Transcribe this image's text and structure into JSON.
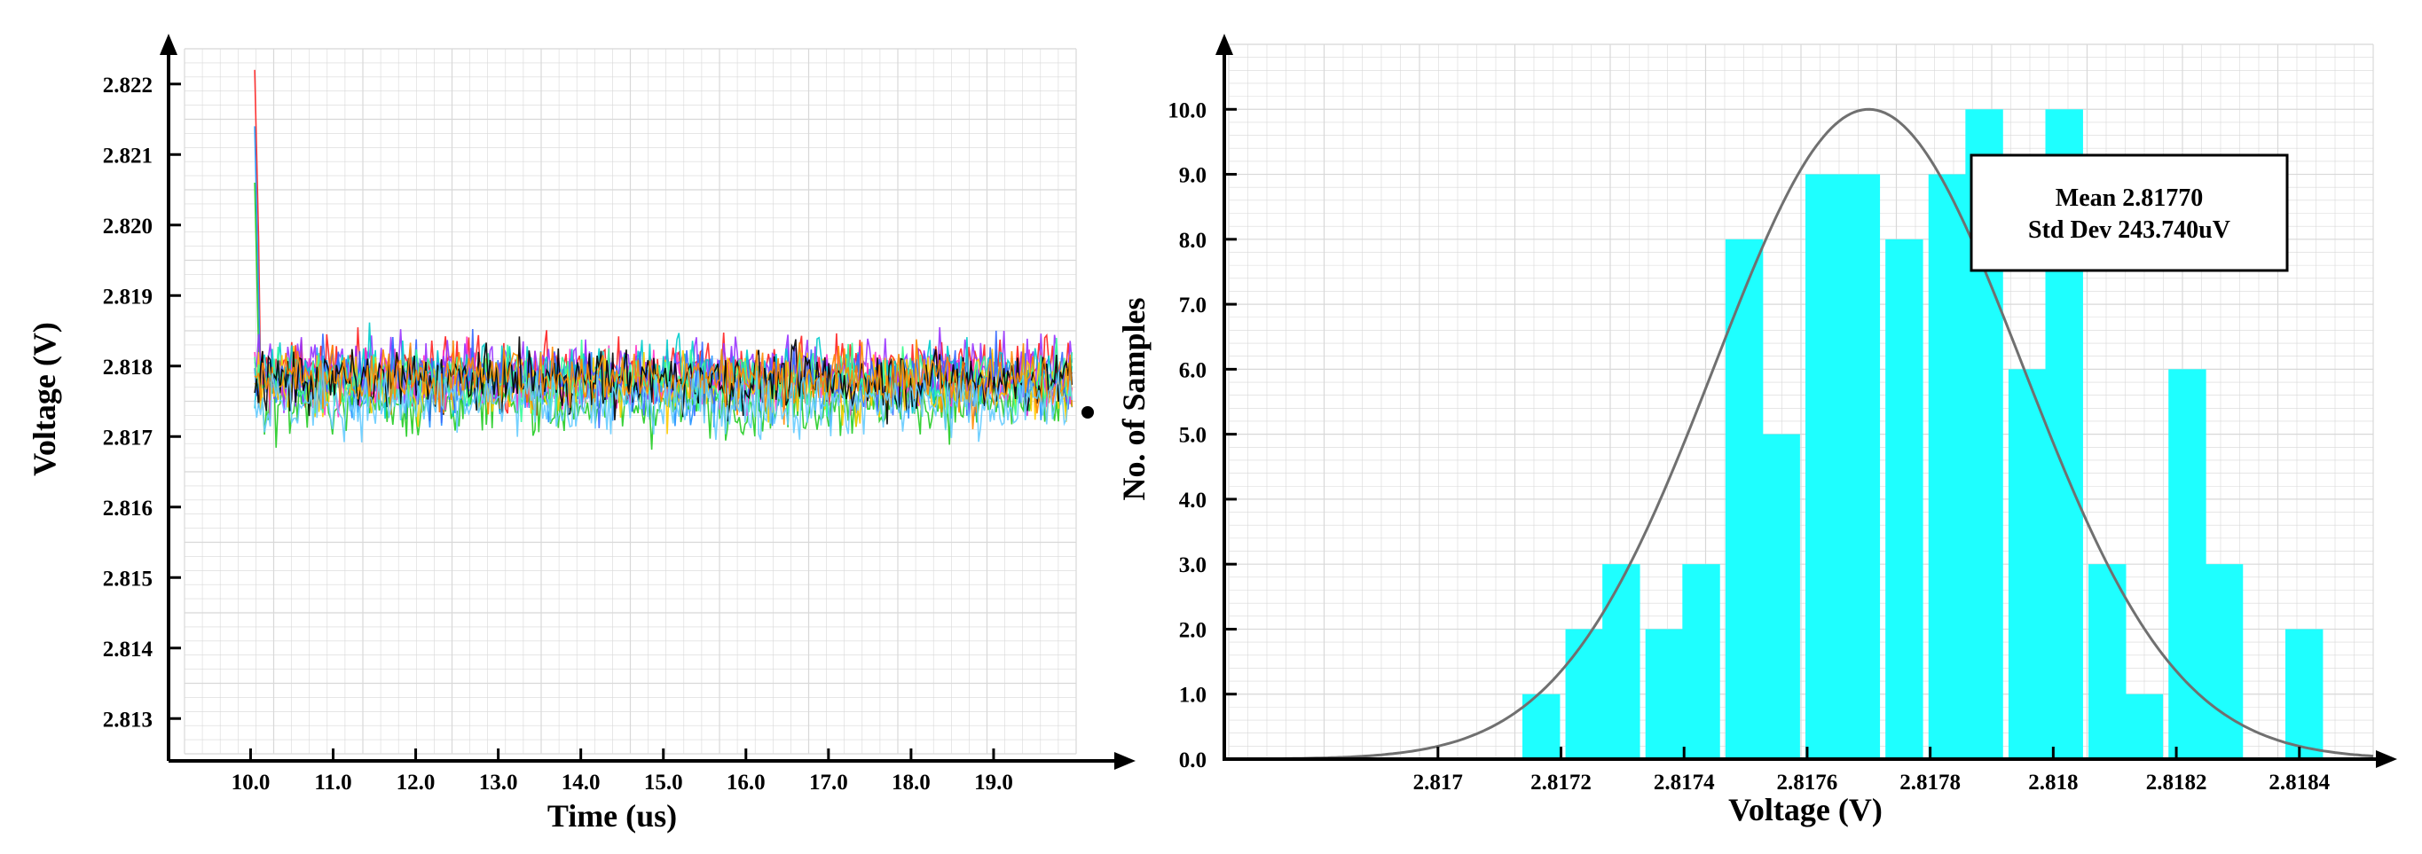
{
  "charts": {
    "left": {
      "ylabel": "Voltage (V)",
      "xlabel": "Time (us)"
    },
    "right": {
      "ylabel": "No. of Samples",
      "xlabel": "Voltage (V)",
      "stats": {
        "mean": "Mean 2.81770",
        "std": "Std Dev 243.740uV"
      }
    }
  },
  "colors": {
    "axis": "#000000",
    "grid": "#d8d8d8",
    "bar_fill": "#1effff",
    "fit_curve": "#707070",
    "trace_palette": [
      "#ff2020",
      "#1e90ff",
      "#22cc22",
      "#ff33cc",
      "#9933ff",
      "#00cccc",
      "#ffcc00",
      "#3366ff",
      "#33ff99",
      "#000000",
      "#ff8800",
      "#66ccff"
    ]
  },
  "chart_data": [
    {
      "type": "line",
      "title": "",
      "xlabel": "Time (us)",
      "ylabel": "Voltage (V)",
      "xlim": [
        9.2,
        20.0
      ],
      "ylim": [
        2.8125,
        2.8225
      ],
      "xticks": [
        10.0,
        11.0,
        12.0,
        13.0,
        14.0,
        15.0,
        16.0,
        17.0,
        18.0,
        19.0
      ],
      "xtick_labels": [
        "10.0",
        "11.0",
        "12.0",
        "13.0",
        "14.0",
        "15.0",
        "16.0",
        "17.0",
        "18.0",
        "19.0"
      ],
      "yticks": [
        2.813,
        2.814,
        2.815,
        2.816,
        2.817,
        2.818,
        2.819,
        2.82,
        2.821,
        2.822
      ],
      "ytick_labels": [
        "2.813",
        "2.814",
        "2.815",
        "2.816",
        "2.817",
        "2.818",
        "2.819",
        "2.820",
        "2.821",
        "2.822"
      ],
      "grid": true,
      "series_description": "many overlaid noisy transient traces",
      "x_start": 10.05,
      "x_end": 19.95,
      "settled_center": 2.8178,
      "settled_band": [
        2.8167,
        2.819
      ],
      "initial_spike_max": 2.8222,
      "series_count": 12
    },
    {
      "type": "bar",
      "title": "",
      "xlabel": "Voltage (V)",
      "ylabel": "No. of Samples",
      "xlim": [
        2.81666,
        2.81852
      ],
      "ylim": [
        0,
        11
      ],
      "xticks": [
        2.817,
        2.8172,
        2.8174,
        2.8176,
        2.8178,
        2.818,
        2.8182,
        2.8184
      ],
      "xtick_labels": [
        "2.817",
        "2.8172",
        "2.8174",
        "2.8176",
        "2.8178",
        "2.818",
        "2.8182",
        "2.8184"
      ],
      "yticks": [
        0,
        1,
        2,
        3,
        4,
        5,
        6,
        7,
        8,
        9,
        10
      ],
      "ytick_labels": [
        "0.0",
        "1.0",
        "2.0",
        "3.0",
        "4.0",
        "5.0",
        "6.0",
        "7.0",
        "8.0",
        "9.0",
        "10.0"
      ],
      "grid": true,
      "bin_width": 6.55e-05,
      "bins": [
        {
          "x": 2.81717,
          "count": 1
        },
        {
          "x": 2.81724,
          "count": 2
        },
        {
          "x": 2.8173,
          "count": 3
        },
        {
          "x": 2.81737,
          "count": 2
        },
        {
          "x": 2.81743,
          "count": 3
        },
        {
          "x": 2.8175,
          "count": 8
        },
        {
          "x": 2.81756,
          "count": 5
        },
        {
          "x": 2.81763,
          "count": 9
        },
        {
          "x": 2.81769,
          "count": 9
        },
        {
          "x": 2.81776,
          "count": 8
        },
        {
          "x": 2.81783,
          "count": 9
        },
        {
          "x": 2.81789,
          "count": 10
        },
        {
          "x": 2.81796,
          "count": 6
        },
        {
          "x": 2.81802,
          "count": 10
        },
        {
          "x": 2.81809,
          "count": 3
        },
        {
          "x": 2.81815,
          "count": 1
        },
        {
          "x": 2.81822,
          "count": 6
        },
        {
          "x": 2.81828,
          "count": 3
        },
        {
          "x": 2.81841,
          "count": 2
        }
      ],
      "fit_curve": {
        "type": "gaussian",
        "mean": 2.8177,
        "std": 0.00025,
        "peak": 10.0
      },
      "legend": "top-right",
      "annotation": [
        "Mean 2.81770",
        "Std Dev 243.740uV"
      ]
    }
  ]
}
